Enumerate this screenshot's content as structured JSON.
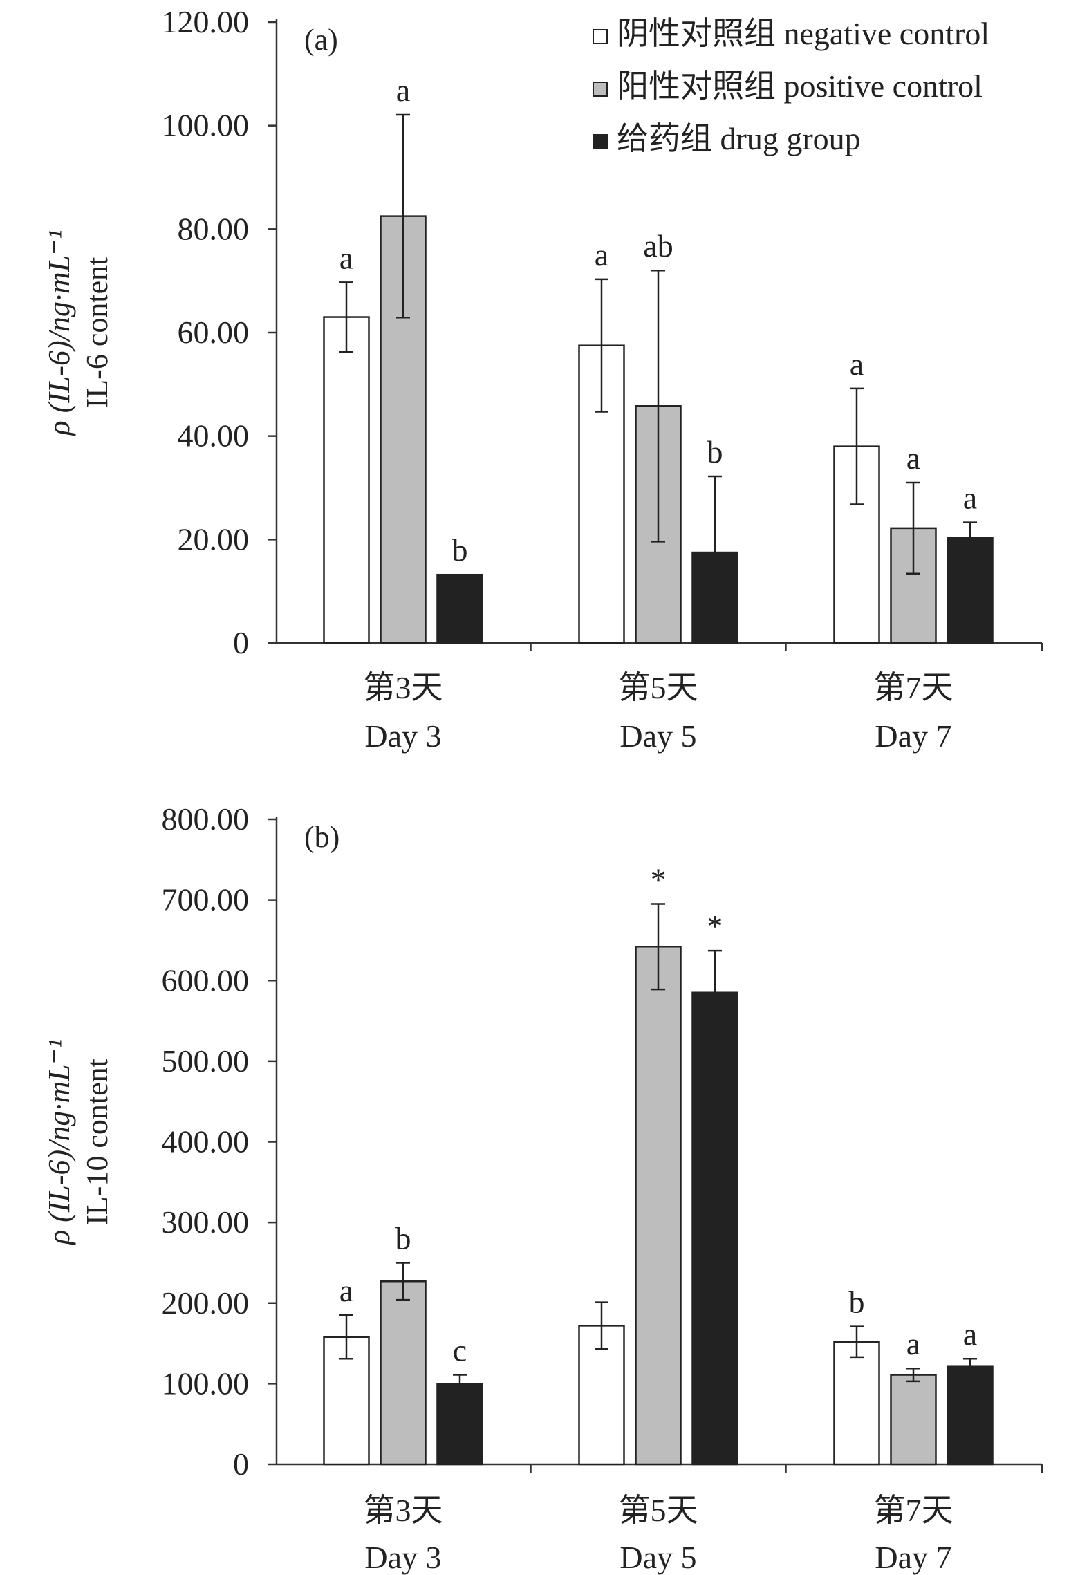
{
  "chart_data": [
    {
      "type": "bar",
      "panel_label": "(a)",
      "ylabel_line1": "ρ (IL-6)/ng·mL⁻¹",
      "ylabel_line2": "IL-6 content",
      "ylim": [
        0,
        120
      ],
      "yticks": [
        0,
        20,
        40,
        60,
        80,
        100,
        120
      ],
      "ytick_labels": [
        "0",
        "20.00",
        "40.00",
        "60.00",
        "80.00",
        "100.00",
        "120.00"
      ],
      "categories": [
        {
          "zh": "第3天",
          "en": "Day 3"
        },
        {
          "zh": "第5天",
          "en": "Day 5"
        },
        {
          "zh": "第7天",
          "en": "Day 7"
        }
      ],
      "series": [
        {
          "name": "阴性对照组 negative control",
          "color": "#ffffff",
          "values": [
            63,
            57.5,
            38
          ],
          "errors": [
            6.7,
            12.8,
            11.2
          ],
          "labels": [
            "a",
            "a",
            "a"
          ]
        },
        {
          "name": "阳性对照组 positive control",
          "color": "#bdbdbd",
          "values": [
            82.5,
            45.8,
            22.2
          ],
          "errors": [
            19.6,
            26.2,
            8.8
          ],
          "labels": [
            "a",
            "ab",
            "a"
          ]
        },
        {
          "name": "给药组 drug group",
          "color": "#222222",
          "values": [
            13.2,
            17.5,
            20.3
          ],
          "errors": [
            0,
            14.7,
            3
          ],
          "labels": [
            "b",
            "b",
            "a"
          ]
        }
      ],
      "legend": "top-right"
    },
    {
      "type": "bar",
      "panel_label": "(b)",
      "ylabel_line1": "ρ (IL-6)/ng·mL⁻¹",
      "ylabel_line2": "IL-10 content",
      "ylim": [
        0,
        800
      ],
      "yticks": [
        0,
        100,
        200,
        300,
        400,
        500,
        600,
        700,
        800
      ],
      "ytick_labels": [
        "0",
        "100.00",
        "200.00",
        "300.00",
        "400.00",
        "500.00",
        "600.00",
        "700.00",
        "800.00"
      ],
      "categories": [
        {
          "zh": "第3天",
          "en": "Day 3"
        },
        {
          "zh": "第5天",
          "en": "Day 5"
        },
        {
          "zh": "第7天",
          "en": "Day 7"
        }
      ],
      "series": [
        {
          "name": "阴性对照组 negative control",
          "color": "#ffffff",
          "values": [
            158,
            172,
            152
          ],
          "errors": [
            27,
            29,
            19
          ],
          "labels": [
            "a",
            "",
            "b"
          ]
        },
        {
          "name": "阳性对照组 positive control",
          "color": "#bdbdbd",
          "values": [
            227,
            642,
            111
          ],
          "errors": [
            23,
            53,
            8
          ],
          "labels": [
            "b",
            "*",
            "a"
          ]
        },
        {
          "name": "给药组 drug group",
          "color": "#222222",
          "values": [
            100,
            585,
            122
          ],
          "errors": [
            11,
            52,
            9
          ],
          "labels": [
            "c",
            "*",
            "a"
          ]
        }
      ]
    }
  ]
}
